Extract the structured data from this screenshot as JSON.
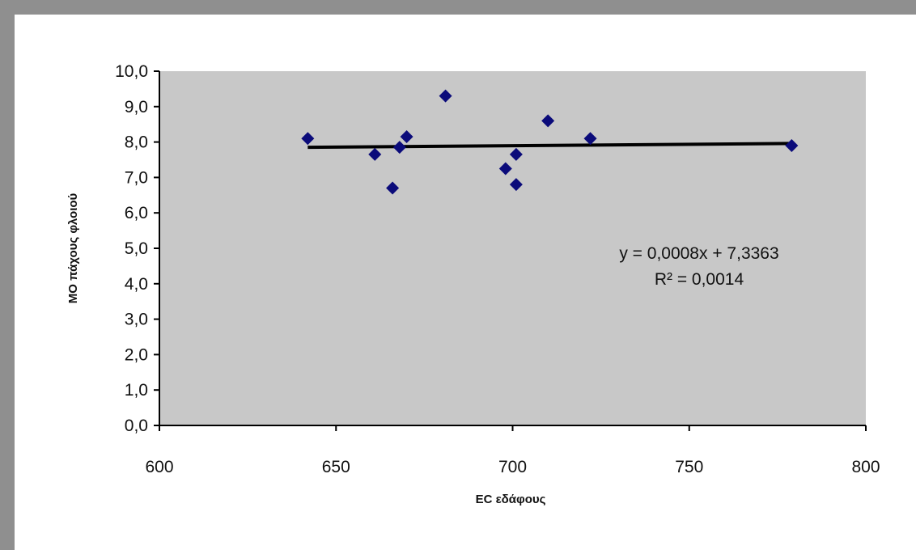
{
  "chart_data": {
    "type": "scatter",
    "xlabel": "EC εδάφους",
    "ylabel": "ΜΟ πάχους φλοιού",
    "xlim": [
      600,
      800
    ],
    "ylim": [
      0,
      10
    ],
    "x_ticks": [
      "600",
      "650",
      "700",
      "750",
      "800"
    ],
    "y_ticks": [
      "0,0",
      "1,0",
      "2,0",
      "3,0",
      "4,0",
      "5,0",
      "6,0",
      "7,0",
      "8,0",
      "9,0",
      "10,0"
    ],
    "grid": false,
    "legend": "none",
    "points": [
      {
        "x": 642,
        "y": 8.1
      },
      {
        "x": 661,
        "y": 7.65
      },
      {
        "x": 666,
        "y": 6.7
      },
      {
        "x": 668,
        "y": 7.85
      },
      {
        "x": 670,
        "y": 8.15
      },
      {
        "x": 681,
        "y": 9.3
      },
      {
        "x": 698,
        "y": 7.25
      },
      {
        "x": 701,
        "y": 7.65
      },
      {
        "x": 701,
        "y": 6.8
      },
      {
        "x": 710,
        "y": 8.6
      },
      {
        "x": 722,
        "y": 8.1
      },
      {
        "x": 779,
        "y": 7.9
      }
    ],
    "trendline": {
      "equation": "y = 0,0008x + 7,3363",
      "r_squared": "R² = 0,0014",
      "slope": 0.0008,
      "intercept": 7.3363,
      "x_range": [
        642,
        779
      ]
    },
    "colors": {
      "plot_background": "#c8c8c8",
      "marker": "#0b0b7a",
      "trendline": "#000000",
      "frame": "#8f8f8f"
    }
  }
}
